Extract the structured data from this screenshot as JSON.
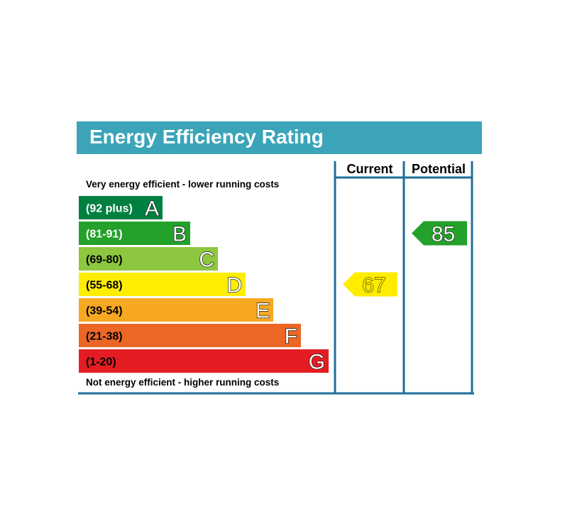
{
  "chart_data": {
    "type": "bar",
    "title": "Energy Efficiency Rating",
    "columns": [
      "Current",
      "Potential"
    ],
    "top_note": "Very energy efficient - lower running costs",
    "bottom_note": "Not energy efficient - higher running costs",
    "bands": [
      {
        "letter": "A",
        "range": "(92 plus)",
        "color": "#008040",
        "text_color": "#ffffff"
      },
      {
        "letter": "B",
        "range": "(81-91)",
        "color": "#23a12a",
        "text_color": "#ffffff"
      },
      {
        "letter": "C",
        "range": "(69-80)",
        "color": "#8dc63f",
        "text_color": "#000000"
      },
      {
        "letter": "D",
        "range": "(55-68)",
        "color": "#ffed00",
        "text_color": "#000000"
      },
      {
        "letter": "E",
        "range": "(39-54)",
        "color": "#f7a823",
        "text_color": "#000000"
      },
      {
        "letter": "F",
        "range": "(21-38)",
        "color": "#ec6726",
        "text_color": "#000000"
      },
      {
        "letter": "G",
        "range": "(1-20)",
        "color": "#e31d23",
        "text_color": "#000000"
      }
    ],
    "current": {
      "value": 67,
      "band": "D",
      "color": "#ffed00"
    },
    "potential": {
      "value": 85,
      "band": "B",
      "color": "#23a12a"
    },
    "colors": {
      "title_bar": "#3ba4b8",
      "frame": "#1f6f9a"
    }
  }
}
